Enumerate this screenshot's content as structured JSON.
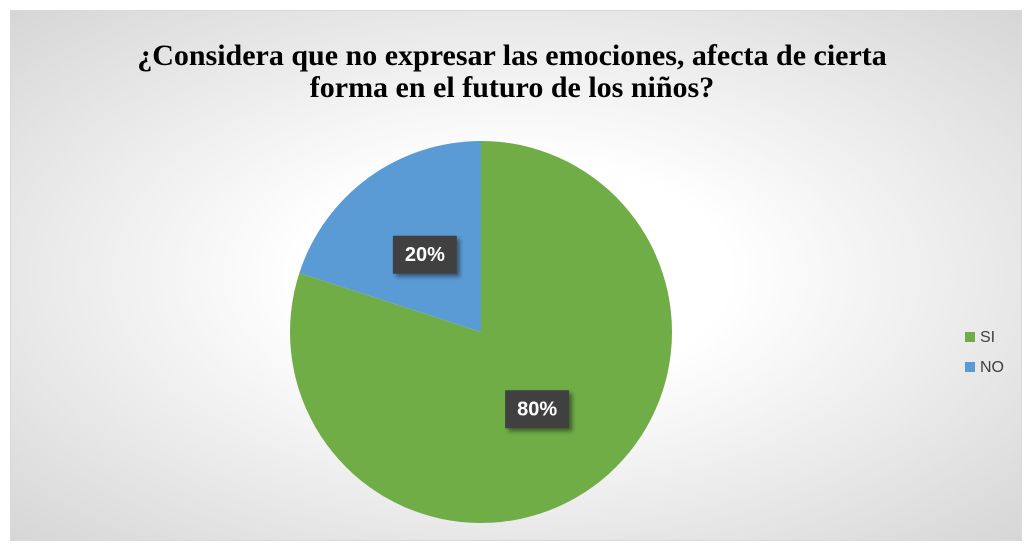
{
  "chart_data": {
    "type": "pie",
    "title": "¿Considera que no expresar las emociones, afecta de cierta forma en el futuro de los niños?",
    "categories": [
      "SI",
      "NO"
    ],
    "values": [
      80,
      20
    ],
    "value_labels": [
      "80%",
      "20%"
    ],
    "colors": [
      "#70ad47",
      "#5b9bd5"
    ],
    "legend": "right"
  }
}
